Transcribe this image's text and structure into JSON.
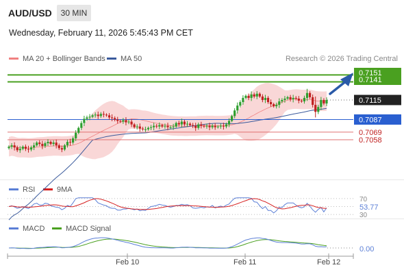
{
  "header": {
    "symbol": "AUD/USD",
    "timeframe": "30 MIN",
    "datetime": "Wednesday, February 11, 2026 5:45:43 PM CET",
    "credit": "Research © 2026 Trading Central"
  },
  "legend_main": [
    {
      "label": "MA 20 + Bollinger Bands",
      "color": "#f08080"
    },
    {
      "label": "MA 50",
      "color": "#3a5a9c"
    }
  ],
  "legend_rsi": [
    {
      "label": "RSI",
      "color": "#5b7fd6"
    },
    {
      "label": "9MA",
      "color": "#d62020"
    }
  ],
  "legend_macd": [
    {
      "label": "MACD",
      "color": "#5b7fd6"
    },
    {
      "label": "MACD Signal",
      "color": "#4aa020"
    }
  ],
  "colors": {
    "up": "#2e9e2e",
    "down": "#c02020",
    "bands_fill": "#f7c6c6",
    "ma50": "#3a5a9c",
    "target_green": "#4aa020",
    "pivot_blue": "#2a5fd0",
    "support_red": "#e07070",
    "arrow": "#2a5aa8"
  },
  "chart_data": [
    {
      "type": "candlestick",
      "title": "AUD/USD 30 MIN",
      "ylim": [
        0.7005,
        0.7168
      ],
      "x_ticks": [
        "Feb 10",
        "Feb 11",
        "Feb 12"
      ],
      "levels": [
        {
          "value": 0.7151,
          "label": "0.7151",
          "role": "target"
        },
        {
          "value": 0.7141,
          "label": "0.7141",
          "role": "target"
        },
        {
          "value": 0.7115,
          "label": "0.7115",
          "role": "last price"
        },
        {
          "value": 0.7087,
          "label": "0.7087",
          "role": "pivot"
        },
        {
          "value": 0.7069,
          "label": "0.7069",
          "role": "support"
        },
        {
          "value": 0.7058,
          "label": "0.7058",
          "role": "support"
        }
      ],
      "closes": [
        0.7048,
        0.705,
        0.7047,
        0.7043,
        0.7045,
        0.7048,
        0.7045,
        0.7044,
        0.7047,
        0.705,
        0.7054,
        0.7052,
        0.7049,
        0.7053,
        0.7055,
        0.7052,
        0.7054,
        0.705,
        0.7046,
        0.7044,
        0.705,
        0.7055,
        0.7054,
        0.706,
        0.7068,
        0.7075,
        0.7082,
        0.7088,
        0.709,
        0.7091,
        0.7093,
        0.7094,
        0.7092,
        0.7095,
        0.7094,
        0.7093,
        0.709,
        0.7089,
        0.7087,
        0.7085,
        0.7084,
        0.7086,
        0.7083,
        0.7084,
        0.708,
        0.7076,
        0.7077,
        0.7074,
        0.7073,
        0.7073,
        0.7075,
        0.7076,
        0.7078,
        0.7077,
        0.7079,
        0.7077,
        0.7078,
        0.7076,
        0.7076,
        0.7077,
        0.7082,
        0.708,
        0.7084,
        0.708,
        0.7081,
        0.7079,
        0.7078,
        0.7075,
        0.708,
        0.7078,
        0.7077,
        0.7078,
        0.7076,
        0.7078,
        0.7076,
        0.7077,
        0.7078,
        0.7077,
        0.708,
        0.7085,
        0.7092,
        0.71,
        0.7107,
        0.7112,
        0.7118,
        0.7121,
        0.7118,
        0.7123,
        0.712,
        0.7124,
        0.712,
        0.7115,
        0.7118,
        0.7112,
        0.7109,
        0.7106,
        0.7108,
        0.7113,
        0.7115,
        0.7117,
        0.7119,
        0.7116,
        0.7118,
        0.7117,
        0.7114,
        0.7113,
        0.7118,
        0.7125,
        0.7119,
        0.7108,
        0.7098,
        0.7105,
        0.7115,
        0.711,
        0.7115
      ]
    },
    {
      "type": "line",
      "title": "RSI",
      "ylim": [
        25,
        80
      ],
      "levels": [
        70,
        30
      ],
      "value_label": "53.77",
      "x": [
        "Feb 10",
        "Feb 11",
        "Feb 12"
      ]
    },
    {
      "type": "line",
      "title": "MACD",
      "zero_label": "0.00",
      "x": [
        "Feb 10",
        "Feb 11",
        "Feb 12"
      ]
    }
  ]
}
